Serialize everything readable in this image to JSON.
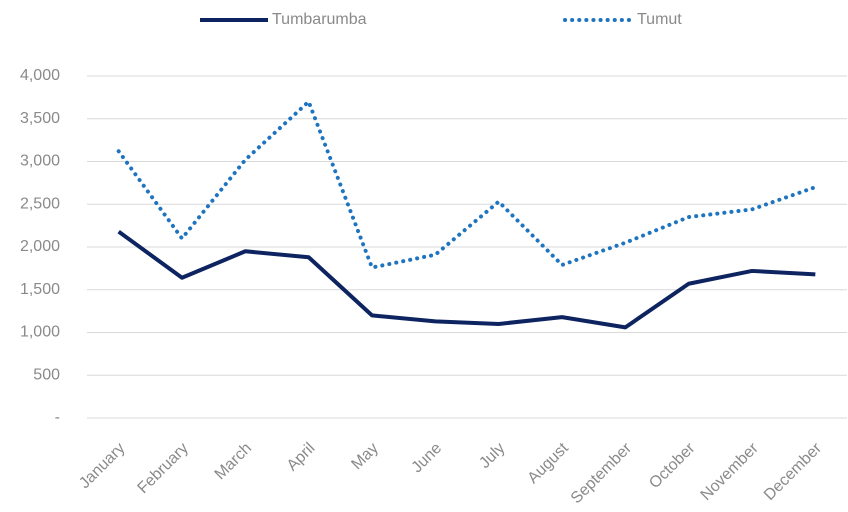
{
  "chart_data": {
    "type": "line",
    "categories": [
      "January",
      "February",
      "March",
      "April",
      "May",
      "June",
      "July",
      "August",
      "September",
      "October",
      "November",
      "December"
    ],
    "series": [
      {
        "name": "Tumbarumba",
        "color": "#0d2461",
        "style": "solid",
        "values": [
          2180,
          1640,
          1950,
          1880,
          1200,
          1130,
          1100,
          1180,
          1060,
          1570,
          1720,
          1680
        ]
      },
      {
        "name": "Tumut",
        "color": "#1f74c0",
        "style": "dotted",
        "values": [
          3120,
          2100,
          3020,
          3700,
          1760,
          1910,
          2530,
          1790,
          2050,
          2350,
          2440,
          2700
        ]
      }
    ],
    "ylim": [
      0,
      4000
    ],
    "yticks": [
      {
        "value": 0,
        "label": "-"
      },
      500,
      {
        "value": 1000,
        "label": "1,000"
      },
      {
        "value": 1500,
        "label": "1,500"
      },
      {
        "value": 2000,
        "label": "2,000"
      },
      {
        "value": 2500,
        "label": "2,500"
      },
      {
        "value": 3000,
        "label": "3,000"
      },
      {
        "value": 3500,
        "label": "3,500"
      },
      {
        "value": 4000,
        "label": "4,000"
      }
    ],
    "grid": true,
    "legend": "top"
  }
}
